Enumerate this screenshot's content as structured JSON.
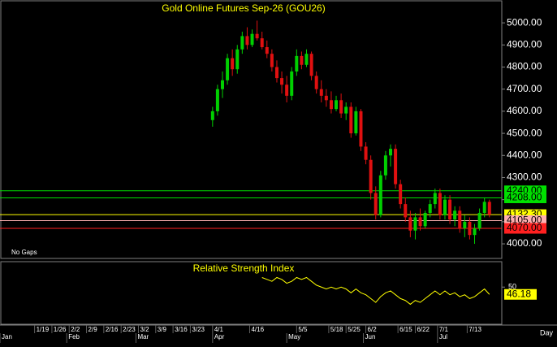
{
  "chart_data": {
    "type": "candlestick",
    "title": "Gold Online Futures Sep-26 (GOU26)",
    "note": "No Gaps",
    "x_unit_label": "Day",
    "xlim": [
      5,
      208
    ],
    "xticks": [
      {
        "value": 19,
        "label": "1/19"
      },
      {
        "value": 26,
        "label": "1/26"
      },
      {
        "value": 33,
        "label": "2/2"
      },
      {
        "value": 40,
        "label": "2/9"
      },
      {
        "value": 47,
        "label": "2/16"
      },
      {
        "value": 54,
        "label": "2/23"
      },
      {
        "value": 61,
        "label": "3/2"
      },
      {
        "value": 68,
        "label": "3/9"
      },
      {
        "value": 75,
        "label": "3/16"
      },
      {
        "value": 82,
        "label": "3/23"
      },
      {
        "value": 91,
        "label": "4/1"
      },
      {
        "value": 106,
        "label": "4/16"
      },
      {
        "value": 125,
        "label": "5/5"
      },
      {
        "value": 138,
        "label": "5/18"
      },
      {
        "value": 145,
        "label": "5/25"
      },
      {
        "value": 153,
        "label": "6/2"
      },
      {
        "value": 166,
        "label": "6/15"
      },
      {
        "value": 173,
        "label": "6/22"
      },
      {
        "value": 182,
        "label": "7/1"
      },
      {
        "value": 194,
        "label": "7/13"
      }
    ],
    "month_ticks": [
      {
        "value": 5,
        "label": "Jan"
      },
      {
        "value": 32,
        "label": "Feb"
      },
      {
        "value": 60,
        "label": "Mar"
      },
      {
        "value": 91,
        "label": "Apr"
      },
      {
        "value": 121,
        "label": "May"
      },
      {
        "value": 152,
        "label": "Jun"
      },
      {
        "value": 182,
        "label": "Jul"
      }
    ],
    "ylim": [
      3934,
      5096
    ],
    "yticks": [
      {
        "value": 4000,
        "label": "4000.00"
      },
      {
        "value": 4100,
        "label": "4100.00"
      },
      {
        "value": 4200,
        "label": "4200.00"
      },
      {
        "value": 4300,
        "label": "4300.00"
      },
      {
        "value": 4400,
        "label": "4400.00"
      },
      {
        "value": 4500,
        "label": "4500.00"
      },
      {
        "value": 4600,
        "label": "4600.00"
      },
      {
        "value": 4700,
        "label": "4700.00"
      },
      {
        "value": 4800,
        "label": "4800.00"
      },
      {
        "value": 4900,
        "label": "4900.00"
      },
      {
        "value": 5000,
        "label": "5000.00"
      }
    ],
    "up_color": "#00d000",
    "down_color": "#e01010",
    "candles": {
      "x": [
        91,
        93,
        95,
        97,
        99,
        101,
        103,
        105,
        107,
        109,
        111,
        113,
        115,
        117,
        119,
        121,
        123,
        125,
        127,
        129,
        131,
        133,
        135,
        137,
        139,
        141,
        143,
        145,
        147,
        149,
        151,
        153,
        155,
        157,
        159,
        161,
        163,
        165,
        167,
        169,
        171,
        173,
        175,
        177,
        179,
        181,
        183,
        185,
        187,
        189,
        191,
        193,
        195,
        197,
        199,
        201,
        203
      ],
      "open": [
        4560,
        4600,
        4700,
        4740,
        4840,
        4790,
        4880,
        4940,
        4900,
        4950,
        4930,
        4890,
        4860,
        4800,
        4750,
        4720,
        4670,
        4780,
        4850,
        4810,
        4860,
        4760,
        4700,
        4670,
        4650,
        4610,
        4650,
        4590,
        4620,
        4500,
        4600,
        4440,
        4380,
        4230,
        4130,
        4310,
        4400,
        4430,
        4270,
        4180,
        4120,
        4060,
        4120,
        4080,
        4140,
        4180,
        4230,
        4130,
        4200,
        4110,
        4150,
        4070,
        4100,
        4040,
        4070,
        4140,
        4190
      ],
      "high": [
        4620,
        4720,
        4780,
        4860,
        4880,
        4900,
        4960,
        4980,
        4970,
        5010,
        4960,
        4920,
        4880,
        4830,
        4780,
        4760,
        4800,
        4880,
        4870,
        4880,
        4870,
        4780,
        4740,
        4700,
        4690,
        4670,
        4680,
        4640,
        4640,
        4620,
        4610,
        4460,
        4400,
        4260,
        4330,
        4420,
        4450,
        4450,
        4290,
        4210,
        4150,
        4140,
        4160,
        4150,
        4200,
        4250,
        4250,
        4220,
        4220,
        4170,
        4170,
        4130,
        4120,
        4090,
        4160,
        4210,
        4200
      ],
      "low": [
        4530,
        4580,
        4660,
        4720,
        4760,
        4770,
        4860,
        4880,
        4890,
        4920,
        4880,
        4840,
        4780,
        4730,
        4680,
        4640,
        4650,
        4760,
        4790,
        4800,
        4740,
        4680,
        4640,
        4620,
        4590,
        4600,
        4570,
        4560,
        4480,
        4490,
        4420,
        4360,
        4200,
        4110,
        4120,
        4290,
        4350,
        4250,
        4160,
        4100,
        4030,
        4020,
        4060,
        4070,
        4120,
        4160,
        4110,
        4110,
        4090,
        4080,
        4050,
        4030,
        4020,
        4000,
        4060,
        4120,
        4120
      ],
      "close": [
        4600,
        4700,
        4740,
        4840,
        4790,
        4880,
        4940,
        4900,
        4950,
        4930,
        4890,
        4860,
        4800,
        4750,
        4720,
        4670,
        4780,
        4850,
        4810,
        4860,
        4760,
        4700,
        4670,
        4650,
        4610,
        4650,
        4590,
        4620,
        4500,
        4600,
        4440,
        4380,
        4230,
        4130,
        4310,
        4400,
        4430,
        4270,
        4180,
        4120,
        4060,
        4120,
        4080,
        4140,
        4180,
        4230,
        4130,
        4200,
        4110,
        4150,
        4070,
        4100,
        4040,
        4070,
        4140,
        4190,
        4132.3
      ]
    },
    "levels": [
      {
        "value": 4240,
        "label": "4240.00",
        "color": "#00e000"
      },
      {
        "value": 4208,
        "label": "4208.00",
        "color": "#00e000"
      },
      {
        "value": 4132.3,
        "label": "4132.30",
        "color": "#ffff00"
      },
      {
        "value": 4105,
        "label": "4105.00",
        "color": "#ffb0b0"
      },
      {
        "value": 4070,
        "label": "4070.00",
        "color": "#ff2020"
      }
    ],
    "rsi": {
      "title": "Relative Strength Index",
      "color": "#ffff00",
      "ylim": [
        31,
        62
      ],
      "yticks": [
        50
      ],
      "x": [
        111,
        113,
        115,
        117,
        119,
        121,
        123,
        125,
        127,
        129,
        131,
        133,
        135,
        137,
        139,
        141,
        143,
        145,
        147,
        149,
        151,
        153,
        155,
        157,
        159,
        161,
        163,
        165,
        167,
        169,
        171,
        173,
        175,
        177,
        179,
        181,
        183,
        185,
        187,
        189,
        191,
        193,
        195,
        197,
        199,
        201,
        203
      ],
      "values": [
        55,
        54,
        53,
        55,
        54,
        52,
        53,
        55,
        54,
        55,
        53,
        51,
        50,
        49,
        50,
        49,
        50,
        49,
        47,
        49,
        47,
        46,
        44,
        42,
        45,
        47,
        48,
        46,
        44,
        43,
        41,
        43,
        42,
        44,
        46,
        48,
        46,
        48,
        46,
        47,
        45,
        46,
        44,
        45,
        47,
        49,
        46.18
      ],
      "last_label": "46.18"
    }
  }
}
